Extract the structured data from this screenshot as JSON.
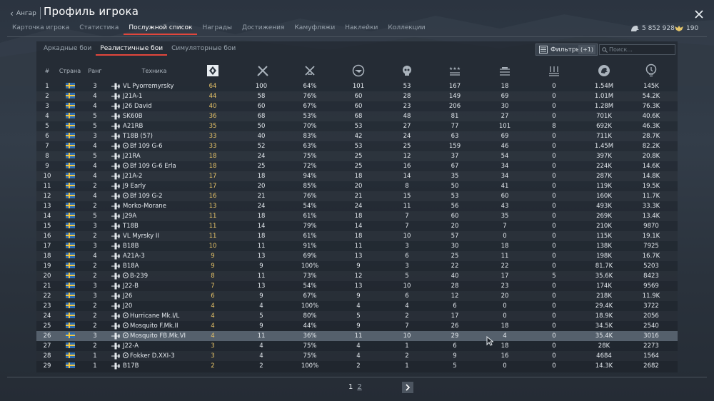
{
  "header": {
    "back_label": "Ангар",
    "title": "Профиль игрока"
  },
  "tabs": [
    {
      "label": "Карточка игрока"
    },
    {
      "label": "Статистика"
    },
    {
      "label": "Послужной список",
      "active": true
    },
    {
      "label": "Награды"
    },
    {
      "label": "Достижения"
    },
    {
      "label": "Камуфляжи"
    },
    {
      "label": "Наклейки"
    },
    {
      "label": "Коллекции"
    }
  ],
  "currency": {
    "silver": "5 852 928",
    "gold": "190"
  },
  "modes": [
    {
      "label": "Аркадные бои"
    },
    {
      "label": "Реалистичные бои",
      "active": true
    },
    {
      "label": "Симуляторные бои"
    }
  ],
  "filter": {
    "label": "Фильтры",
    "count": "(+1)"
  },
  "search": {
    "placeholder": "Поиск..."
  },
  "table": {
    "headers": {
      "index": "#",
      "country": "Страна",
      "rank": "Ранг",
      "vehicle": "Техника"
    },
    "column_icons": [
      "battles-icon",
      "victories-icon",
      "win-rate-icon",
      "respawns-icon",
      "deaths-icon",
      "air-kills-icon",
      "ground-kills-icon",
      "naval-kills-icon",
      "silver-lions-icon",
      "research-points-icon"
    ],
    "rows": [
      [
        "1",
        "3",
        "VL Pyorremyrsky",
        "64",
        "100",
        "64%",
        "101",
        "53",
        "167",
        "18",
        "0",
        "1.54M",
        "145K"
      ],
      [
        "2",
        "4",
        "J21A-1",
        "44",
        "58",
        "76%",
        "60",
        "28",
        "149",
        "69",
        "0",
        "1.01M",
        "54.2K"
      ],
      [
        "3",
        "4",
        "J26 David",
        "40",
        "60",
        "67%",
        "60",
        "23",
        "206",
        "30",
        "0",
        "1.28M",
        "76.3K"
      ],
      [
        "4",
        "5",
        "SK60B",
        "36",
        "68",
        "53%",
        "68",
        "48",
        "81",
        "27",
        "0",
        "701K",
        "40.6K"
      ],
      [
        "5",
        "5",
        "A21RB",
        "35",
        "50",
        "70%",
        "53",
        "27",
        "77",
        "101",
        "8",
        "692K",
        "46.3K"
      ],
      [
        "6",
        "3",
        "T18B (57)",
        "33",
        "40",
        "83%",
        "42",
        "24",
        "63",
        "69",
        "0",
        "711K",
        "28.7K"
      ],
      [
        "7",
        "4",
        "Bf 109 G-6",
        "33",
        "52",
        "63%",
        "53",
        "25",
        "159",
        "46",
        "0",
        "1.45M",
        "82.2K"
      ],
      [
        "8",
        "5",
        "J21RA",
        "18",
        "24",
        "75%",
        "25",
        "12",
        "37",
        "54",
        "0",
        "397K",
        "20.8K"
      ],
      [
        "9",
        "4",
        "Bf 109 G-6 Erla",
        "18",
        "25",
        "72%",
        "25",
        "16",
        "67",
        "34",
        "0",
        "224K",
        "14.6K"
      ],
      [
        "10",
        "4",
        "J21A-2",
        "17",
        "18",
        "94%",
        "18",
        "14",
        "35",
        "34",
        "0",
        "287K",
        "14.8K"
      ],
      [
        "11",
        "2",
        "J9 Early",
        "17",
        "20",
        "85%",
        "20",
        "8",
        "50",
        "41",
        "0",
        "119K",
        "19.5K"
      ],
      [
        "12",
        "4",
        "Bf 109 G-2",
        "16",
        "21",
        "76%",
        "21",
        "15",
        "53",
        "60",
        "0",
        "160K",
        "11.7K"
      ],
      [
        "13",
        "2",
        "Morko-Morane",
        "13",
        "24",
        "54%",
        "24",
        "11",
        "56",
        "43",
        "0",
        "493K",
        "33.3K"
      ],
      [
        "14",
        "5",
        "J29A",
        "11",
        "18",
        "61%",
        "18",
        "7",
        "60",
        "35",
        "0",
        "269K",
        "13.4K"
      ],
      [
        "15",
        "3",
        "T18B",
        "11",
        "14",
        "79%",
        "14",
        "7",
        "20",
        "7",
        "0",
        "210K",
        "9870"
      ],
      [
        "16",
        "2",
        "VL Myrsky II",
        "11",
        "18",
        "61%",
        "18",
        "10",
        "57",
        "0",
        "0",
        "115K",
        "19.1K"
      ],
      [
        "17",
        "3",
        "B18B",
        "10",
        "11",
        "91%",
        "11",
        "3",
        "30",
        "18",
        "0",
        "138K",
        "7925"
      ],
      [
        "18",
        "4",
        "A21A-3",
        "9",
        "13",
        "69%",
        "13",
        "6",
        "25",
        "11",
        "0",
        "198K",
        "16.7K"
      ],
      [
        "19",
        "2",
        "B18A",
        "9",
        "9",
        "100%",
        "9",
        "3",
        "22",
        "22",
        "0",
        "81.7K",
        "5203"
      ],
      [
        "20",
        "2",
        "B-239",
        "8",
        "11",
        "73%",
        "12",
        "5",
        "40",
        "17",
        "5",
        "35.6K",
        "8423"
      ],
      [
        "21",
        "3",
        "J22-B",
        "7",
        "13",
        "54%",
        "13",
        "10",
        "28",
        "23",
        "0",
        "174K",
        "9569"
      ],
      [
        "22",
        "3",
        "J26",
        "6",
        "9",
        "67%",
        "9",
        "6",
        "12",
        "20",
        "0",
        "218K",
        "11.9K"
      ],
      [
        "23",
        "2",
        "J20",
        "4",
        "4",
        "100%",
        "4",
        "4",
        "6",
        "0",
        "0",
        "29.4K",
        "3722"
      ],
      [
        "24",
        "2",
        "Hurricane Mk.I/L",
        "4",
        "5",
        "80%",
        "5",
        "2",
        "17",
        "0",
        "0",
        "18.9K",
        "2056"
      ],
      [
        "25",
        "2",
        "Mosquito F.Mk.II",
        "4",
        "9",
        "44%",
        "9",
        "7",
        "26",
        "18",
        "0",
        "34.5K",
        "2540"
      ],
      [
        "26",
        "3",
        "Mosquito FB.Mk.VI",
        "4",
        "11",
        "36%",
        "11",
        "10",
        "29",
        "4",
        "0",
        "35.4K",
        "3016"
      ],
      [
        "27",
        "2",
        "J22-A",
        "3",
        "4",
        "75%",
        "4",
        "1",
        "6",
        "18",
        "0",
        "28K",
        "2273"
      ],
      [
        "28",
        "1",
        "Fokker D.XXI-3",
        "3",
        "4",
        "75%",
        "4",
        "2",
        "9",
        "16",
        "0",
        "4684",
        "1564"
      ],
      [
        "29",
        "1",
        "B17B",
        "2",
        "2",
        "100%",
        "2",
        "1",
        "5",
        "0",
        "0",
        "14.3K",
        "2682"
      ]
    ],
    "premium_rows": [
      7,
      9,
      12,
      20,
      24,
      25,
      26,
      28
    ],
    "selected_row": 26
  },
  "pagination": {
    "pages": [
      "1",
      "2"
    ],
    "current": "1"
  },
  "colors": {
    "accent": "#e2463c",
    "battles_value": "#e8c468",
    "flag_blue": "#2f6db0",
    "flag_yellow": "#f2c640"
  }
}
